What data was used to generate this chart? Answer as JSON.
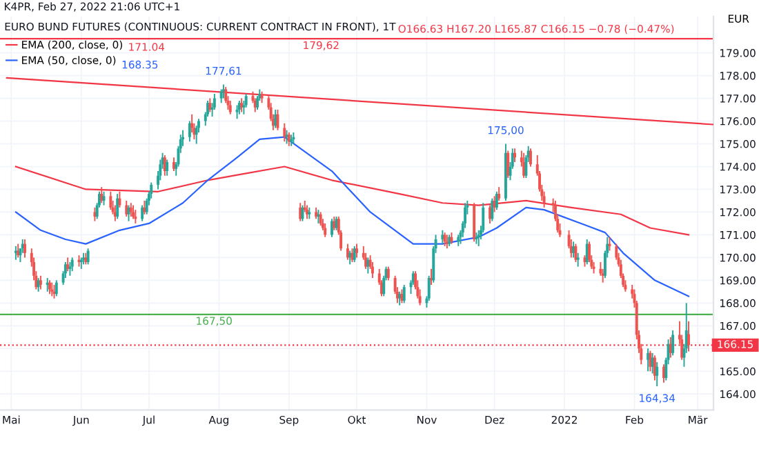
{
  "chart_data": {
    "type": "candlestick",
    "title": "EURO BUND FUTURES (CONTINUOUS: CURRENT CONTRACT IN FRONT), 1T",
    "subtitle": "K4PR, Feb 27, 2022 21:06 UTC+1",
    "ylabel": "EUR",
    "x": [
      "2021-05-03",
      "2021-05-04",
      "2021-05-05",
      "2021-05-06",
      "2021-05-07",
      "2021-05-10",
      "2021-05-11",
      "2021-05-12",
      "2021-05-13",
      "2021-05-14",
      "2021-05-17",
      "2021-05-18",
      "2021-05-19",
      "2021-05-20",
      "2021-05-21",
      "2021-05-24",
      "2021-05-25",
      "2021-05-26",
      "2021-05-27",
      "2021-05-28",
      "2021-05-31",
      "2021-06-01",
      "2021-06-02",
      "2021-06-03",
      "2021-06-04",
      "2021-06-07",
      "2021-06-08",
      "2021-06-09",
      "2021-06-10",
      "2021-06-11",
      "2021-06-14",
      "2021-06-15",
      "2021-06-16",
      "2021-06-17",
      "2021-06-18",
      "2021-06-21",
      "2021-06-22",
      "2021-06-23",
      "2021-06-24",
      "2021-06-25",
      "2021-06-28",
      "2021-06-29",
      "2021-06-30",
      "2021-07-01",
      "2021-07-02",
      "2021-07-05",
      "2021-07-06",
      "2021-07-07",
      "2021-07-08",
      "2021-07-09",
      "2021-07-12",
      "2021-07-13",
      "2021-07-14",
      "2021-07-15",
      "2021-07-16",
      "2021-07-19",
      "2021-07-20",
      "2021-07-21",
      "2021-07-22",
      "2021-07-23",
      "2021-07-26",
      "2021-07-27",
      "2021-07-28",
      "2021-07-29",
      "2021-07-30",
      "2021-08-02",
      "2021-08-03",
      "2021-08-04",
      "2021-08-05",
      "2021-08-06",
      "2021-08-09",
      "2021-08-10",
      "2021-08-11",
      "2021-08-12",
      "2021-08-13",
      "2021-08-16",
      "2021-08-17",
      "2021-08-18",
      "2021-08-19",
      "2021-08-20",
      "2021-08-23",
      "2021-08-24",
      "2021-08-25",
      "2021-08-26",
      "2021-08-27",
      "2021-08-30",
      "2021-08-31",
      "2021-09-01",
      "2021-09-02",
      "2021-09-03",
      "2021-09-06",
      "2021-09-07",
      "2021-09-08",
      "2021-09-09",
      "2021-09-10",
      "2021-09-13",
      "2021-09-14",
      "2021-09-15",
      "2021-09-16",
      "2021-09-17",
      "2021-09-20",
      "2021-09-21",
      "2021-09-22",
      "2021-09-23",
      "2021-09-24",
      "2021-09-27",
      "2021-09-28",
      "2021-09-29",
      "2021-09-30",
      "2021-10-01",
      "2021-10-04",
      "2021-10-05",
      "2021-10-06",
      "2021-10-07",
      "2021-10-08",
      "2021-10-11",
      "2021-10-12",
      "2021-10-13",
      "2021-10-14",
      "2021-10-15",
      "2021-10-18",
      "2021-10-19",
      "2021-10-20",
      "2021-10-21",
      "2021-10-22",
      "2021-10-25",
      "2021-10-26",
      "2021-10-27",
      "2021-10-28",
      "2021-10-29",
      "2021-11-01",
      "2021-11-02",
      "2021-11-03",
      "2021-11-04",
      "2021-11-05",
      "2021-11-08",
      "2021-11-09",
      "2021-11-10",
      "2021-11-11",
      "2021-11-12",
      "2021-11-15",
      "2021-11-16",
      "2021-11-17",
      "2021-11-18",
      "2021-11-19",
      "2021-11-22",
      "2021-11-23",
      "2021-11-24",
      "2021-11-25",
      "2021-11-26",
      "2021-11-29",
      "2021-11-30",
      "2021-12-01",
      "2021-12-02",
      "2021-12-03",
      "2021-12-06",
      "2021-12-07",
      "2021-12-08",
      "2021-12-09",
      "2021-12-10",
      "2021-12-13",
      "2021-12-14",
      "2021-12-15",
      "2021-12-16",
      "2021-12-17",
      "2021-12-20",
      "2021-12-21",
      "2021-12-22",
      "2021-12-23",
      "2021-12-27",
      "2021-12-28",
      "2021-12-29",
      "2021-12-30",
      "2022-01-03",
      "2022-01-04",
      "2022-01-05",
      "2022-01-06",
      "2022-01-07",
      "2022-01-10",
      "2022-01-11",
      "2022-01-12",
      "2022-01-13",
      "2022-01-14",
      "2022-01-17",
      "2022-01-18",
      "2022-01-19",
      "2022-01-20",
      "2022-01-21",
      "2022-01-24",
      "2022-01-25",
      "2022-01-26",
      "2022-01-27",
      "2022-01-28",
      "2022-01-31",
      "2022-02-01",
      "2022-02-02",
      "2022-02-03",
      "2022-02-04",
      "2022-02-07",
      "2022-02-08",
      "2022-02-09",
      "2022-02-10",
      "2022-02-11",
      "2022-02-14",
      "2022-02-15",
      "2022-02-16",
      "2022-02-17",
      "2022-02-18",
      "2022-02-21",
      "2022-02-22",
      "2022-02-23",
      "2022-02-24",
      "2022-02-25"
    ],
    "ohlc": [
      [
        170.2,
        170.5,
        169.9,
        170.3
      ],
      [
        170.3,
        170.6,
        170.0,
        170.1
      ],
      [
        170.1,
        170.4,
        169.8,
        170.4
      ],
      [
        170.4,
        170.8,
        170.2,
        170.6
      ],
      [
        170.6,
        170.8,
        170.0,
        170.2
      ],
      [
        170.2,
        170.4,
        169.6,
        169.8
      ],
      [
        169.8,
        170.0,
        169.0,
        169.2
      ],
      [
        169.2,
        169.4,
        168.6,
        168.7
      ],
      [
        168.7,
        169.1,
        168.5,
        169.0
      ],
      [
        169.0,
        169.2,
        168.6,
        168.8
      ],
      [
        168.8,
        169.1,
        168.5,
        168.9
      ],
      [
        168.9,
        169.0,
        168.4,
        168.6
      ],
      [
        168.6,
        168.9,
        168.3,
        168.5
      ],
      [
        168.5,
        168.8,
        168.2,
        168.4
      ],
      [
        168.4,
        169.0,
        168.3,
        168.9
      ],
      [
        168.9,
        169.4,
        168.8,
        169.3
      ],
      [
        169.3,
        169.8,
        169.1,
        169.7
      ],
      [
        169.7,
        170.0,
        169.4,
        169.5
      ],
      [
        169.5,
        169.8,
        169.2,
        169.6
      ],
      [
        169.6,
        170.0,
        169.4,
        169.9
      ],
      [
        169.9,
        170.1,
        169.6,
        169.8
      ],
      [
        169.8,
        170.0,
        169.5,
        169.9
      ],
      [
        169.9,
        170.2,
        169.7,
        170.0
      ],
      [
        170.0,
        170.2,
        169.7,
        169.8
      ],
      [
        169.8,
        170.4,
        169.7,
        170.3
      ],
      [
        172.0,
        172.2,
        171.6,
        171.8
      ],
      [
        171.8,
        172.4,
        171.7,
        172.3
      ],
      [
        172.3,
        172.9,
        172.2,
        172.8
      ],
      [
        172.8,
        173.1,
        172.4,
        172.5
      ],
      [
        172.5,
        172.9,
        172.3,
        172.7
      ],
      [
        172.7,
        172.9,
        172.1,
        172.2
      ],
      [
        172.2,
        172.5,
        171.9,
        172.0
      ],
      [
        172.0,
        172.3,
        171.6,
        171.8
      ],
      [
        171.8,
        172.8,
        171.7,
        172.6
      ],
      [
        172.6,
        172.9,
        172.2,
        172.3
      ],
      [
        172.3,
        172.5,
        171.8,
        171.9
      ],
      [
        171.9,
        172.3,
        171.6,
        172.2
      ],
      [
        172.2,
        172.4,
        171.8,
        172.0
      ],
      [
        172.0,
        172.3,
        171.7,
        171.8
      ],
      [
        171.8,
        172.1,
        171.5,
        171.7
      ],
      [
        171.7,
        172.3,
        171.6,
        172.2
      ],
      [
        172.2,
        172.5,
        171.9,
        172.0
      ],
      [
        172.0,
        172.6,
        171.9,
        172.5
      ],
      [
        172.5,
        172.9,
        172.3,
        172.8
      ],
      [
        172.8,
        173.3,
        172.6,
        173.2
      ],
      [
        173.2,
        173.8,
        173.0,
        173.6
      ],
      [
        173.6,
        174.3,
        173.4,
        174.1
      ],
      [
        174.1,
        174.6,
        173.9,
        174.4
      ],
      [
        174.4,
        174.5,
        173.6,
        173.8
      ],
      [
        173.8,
        174.3,
        173.6,
        174.2
      ],
      [
        174.2,
        174.4,
        173.8,
        173.9
      ],
      [
        173.9,
        174.2,
        173.6,
        174.1
      ],
      [
        174.1,
        174.9,
        174.0,
        174.8
      ],
      [
        174.8,
        175.4,
        174.6,
        175.2
      ],
      [
        175.2,
        175.6,
        174.9,
        175.3
      ],
      [
        175.3,
        176.0,
        175.1,
        175.9
      ],
      [
        175.9,
        176.3,
        175.5,
        175.7
      ],
      [
        175.7,
        175.9,
        175.2,
        175.4
      ],
      [
        175.4,
        175.8,
        175.0,
        175.7
      ],
      [
        175.7,
        176.1,
        175.5,
        176.0
      ],
      [
        176.0,
        176.4,
        175.8,
        176.3
      ],
      [
        176.3,
        176.9,
        176.2,
        176.8
      ],
      [
        176.8,
        177.0,
        176.4,
        176.5
      ],
      [
        176.5,
        176.8,
        176.2,
        176.6
      ],
      [
        176.6,
        177.2,
        176.5,
        177.0
      ],
      [
        177.0,
        177.4,
        176.8,
        177.3
      ],
      [
        177.3,
        177.61,
        177.0,
        177.4
      ],
      [
        177.4,
        177.5,
        176.8,
        176.9
      ],
      [
        176.9,
        177.1,
        176.5,
        176.7
      ],
      [
        176.7,
        176.9,
        176.3,
        176.4
      ],
      [
        176.4,
        176.7,
        176.1,
        176.5
      ],
      [
        176.5,
        176.9,
        176.3,
        176.8
      ],
      [
        176.8,
        177.0,
        176.4,
        176.6
      ],
      [
        176.6,
        176.9,
        176.3,
        176.7
      ],
      [
        176.7,
        177.2,
        176.6,
        177.1
      ],
      [
        177.1,
        177.3,
        176.8,
        176.9
      ],
      [
        176.9,
        177.0,
        176.4,
        176.6
      ],
      [
        176.6,
        177.1,
        176.5,
        177.0
      ],
      [
        177.0,
        177.4,
        176.9,
        177.2
      ],
      [
        177.2,
        177.3,
        176.8,
        177.0
      ],
      [
        177.0,
        177.1,
        176.5,
        176.6
      ],
      [
        176.6,
        176.8,
        176.0,
        176.1
      ],
      [
        176.1,
        176.3,
        175.6,
        175.8
      ],
      [
        175.8,
        176.5,
        175.7,
        176.3
      ],
      [
        176.3,
        176.5,
        175.6,
        175.7
      ],
      [
        175.7,
        175.9,
        175.1,
        175.3
      ],
      [
        175.3,
        175.6,
        175.0,
        175.4
      ],
      [
        175.4,
        175.5,
        174.9,
        175.1
      ],
      [
        175.1,
        175.4,
        174.9,
        175.2
      ],
      [
        175.2,
        175.5,
        175.0,
        175.3
      ],
      [
        172.2,
        172.4,
        171.6,
        171.7
      ],
      [
        171.7,
        172.3,
        171.6,
        172.2
      ],
      [
        172.2,
        172.5,
        172.0,
        172.1
      ],
      [
        172.1,
        172.3,
        171.7,
        171.9
      ],
      [
        171.9,
        172.2,
        171.7,
        172.0
      ],
      [
        172.0,
        172.2,
        171.7,
        171.8
      ],
      [
        171.8,
        172.1,
        171.5,
        171.9
      ],
      [
        171.9,
        172.0,
        171.4,
        171.5
      ],
      [
        171.5,
        171.7,
        171.2,
        171.3
      ],
      [
        171.3,
        171.5,
        170.9,
        171.0
      ],
      [
        171.0,
        171.7,
        170.9,
        171.6
      ],
      [
        171.6,
        171.8,
        171.2,
        171.3
      ],
      [
        171.3,
        171.8,
        171.2,
        171.7
      ],
      [
        171.7,
        171.8,
        171.0,
        171.1
      ],
      [
        171.1,
        171.2,
        170.3,
        170.4
      ],
      [
        170.4,
        170.6,
        169.9,
        170.0
      ],
      [
        170.0,
        170.3,
        169.7,
        170.2
      ],
      [
        170.2,
        170.4,
        169.8,
        169.9
      ],
      [
        169.9,
        170.5,
        169.8,
        170.4
      ],
      [
        170.4,
        170.6,
        170.0,
        170.2
      ],
      [
        170.2,
        170.5,
        169.9,
        170.0
      ],
      [
        170.0,
        170.2,
        169.5,
        169.6
      ],
      [
        169.6,
        170.0,
        169.3,
        169.9
      ],
      [
        169.9,
        170.1,
        169.5,
        169.6
      ],
      [
        169.6,
        169.8,
        169.1,
        169.3
      ],
      [
        169.3,
        169.5,
        168.8,
        168.9
      ],
      [
        168.9,
        169.0,
        168.3,
        168.4
      ],
      [
        168.4,
        169.2,
        168.3,
        169.1
      ],
      [
        169.1,
        169.6,
        169.0,
        169.5
      ],
      [
        169.5,
        169.6,
        169.0,
        169.1
      ],
      [
        169.1,
        169.2,
        168.4,
        168.5
      ],
      [
        168.5,
        168.7,
        168.0,
        168.2
      ],
      [
        168.2,
        168.5,
        167.9,
        168.4
      ],
      [
        168.4,
        168.6,
        168.0,
        168.1
      ],
      [
        168.1,
        168.8,
        168.0,
        168.7
      ],
      [
        168.7,
        169.0,
        168.4,
        168.9
      ],
      [
        168.9,
        169.4,
        168.8,
        169.3
      ],
      [
        169.3,
        169.4,
        168.6,
        168.7
      ],
      [
        168.7,
        169.0,
        168.2,
        168.3
      ],
      [
        168.3,
        168.6,
        167.9,
        168.0
      ],
      [
        168.0,
        168.3,
        167.8,
        168.2
      ],
      [
        168.2,
        169.2,
        168.1,
        169.1
      ],
      [
        169.1,
        169.5,
        168.8,
        169.0
      ],
      [
        169.0,
        170.5,
        168.9,
        170.4
      ],
      [
        170.4,
        171.0,
        170.2,
        170.8
      ],
      [
        170.8,
        171.2,
        170.6,
        171.0
      ],
      [
        171.0,
        171.1,
        170.5,
        170.7
      ],
      [
        170.7,
        171.0,
        170.4,
        170.6
      ],
      [
        170.6,
        171.0,
        170.5,
        170.9
      ],
      [
        170.9,
        171.1,
        170.6,
        170.7
      ],
      [
        170.7,
        171.0,
        170.5,
        170.9
      ],
      [
        170.9,
        171.2,
        170.6,
        171.1
      ],
      [
        171.1,
        171.6,
        170.9,
        171.5
      ],
      [
        171.5,
        172.4,
        171.3,
        172.2
      ],
      [
        172.2,
        172.5,
        171.9,
        172.3
      ],
      [
        172.3,
        172.4,
        170.7,
        170.8
      ],
      [
        170.8,
        171.1,
        170.6,
        170.9
      ],
      [
        170.9,
        171.2,
        170.5,
        171.0
      ],
      [
        171.0,
        171.4,
        170.8,
        171.2
      ],
      [
        171.2,
        172.4,
        171.1,
        172.2
      ],
      [
        172.2,
        172.3,
        171.5,
        171.7
      ],
      [
        171.7,
        172.6,
        171.6,
        172.5
      ],
      [
        172.5,
        172.7,
        172.0,
        172.2
      ],
      [
        172.2,
        172.9,
        172.1,
        172.8
      ],
      [
        172.8,
        173.1,
        172.5,
        172.6
      ],
      [
        172.6,
        175.0,
        172.5,
        174.6
      ],
      [
        174.6,
        174.7,
        173.5,
        173.6
      ],
      [
        173.6,
        174.2,
        173.4,
        174.0
      ],
      [
        174.0,
        174.8,
        173.9,
        174.6
      ],
      [
        174.6,
        174.8,
        174.2,
        174.4
      ],
      [
        174.4,
        174.7,
        174.0,
        174.2
      ],
      [
        174.2,
        174.6,
        173.5,
        173.6
      ],
      [
        173.6,
        174.5,
        173.5,
        174.4
      ],
      [
        174.4,
        174.9,
        174.2,
        174.7
      ],
      [
        174.7,
        174.8,
        174.0,
        174.1
      ],
      [
        174.1,
        174.5,
        173.6,
        173.7
      ],
      [
        173.7,
        173.8,
        172.9,
        173.0
      ],
      [
        173.0,
        173.2,
        172.5,
        172.7
      ],
      [
        172.7,
        172.9,
        172.2,
        172.4
      ],
      [
        172.4,
        172.6,
        172.0,
        172.3
      ],
      [
        172.3,
        172.5,
        171.6,
        171.7
      ],
      [
        171.7,
        171.9,
        171.1,
        171.2
      ],
      [
        171.2,
        171.5,
        170.9,
        171.0
      ],
      [
        171.0,
        171.2,
        170.4,
        170.5
      ],
      [
        170.5,
        170.8,
        170.0,
        170.2
      ],
      [
        170.2,
        170.7,
        170.0,
        170.5
      ],
      [
        170.5,
        170.6,
        169.8,
        169.9
      ],
      [
        169.9,
        170.2,
        169.6,
        170.0
      ],
      [
        170.0,
        170.1,
        169.6,
        169.8
      ],
      [
        169.8,
        170.8,
        169.7,
        170.6
      ],
      [
        170.6,
        170.7,
        169.8,
        169.9
      ],
      [
        169.9,
        170.1,
        169.5,
        169.6
      ],
      [
        169.6,
        169.8,
        169.3,
        169.5
      ],
      [
        169.5,
        169.8,
        169.2,
        169.3
      ],
      [
        169.3,
        169.5,
        168.9,
        169.2
      ],
      [
        169.2,
        170.3,
        169.1,
        170.2
      ],
      [
        170.2,
        170.9,
        170.0,
        170.6
      ],
      [
        170.6,
        170.9,
        170.3,
        170.5
      ],
      [
        170.5,
        170.6,
        169.9,
        170.0
      ],
      [
        170.0,
        170.2,
        169.6,
        169.7
      ],
      [
        169.7,
        169.9,
        169.1,
        169.2
      ],
      [
        169.2,
        169.3,
        168.7,
        168.8
      ],
      [
        168.8,
        169.0,
        168.5,
        168.6
      ],
      [
        168.6,
        168.8,
        168.2,
        168.4
      ],
      [
        168.4,
        168.6,
        167.8,
        168.0
      ],
      [
        168.0,
        168.1,
        166.4,
        166.6
      ],
      [
        166.6,
        166.8,
        165.8,
        166.0
      ],
      [
        166.0,
        166.2,
        165.3,
        165.5
      ],
      [
        165.5,
        166.0,
        165.0,
        165.8
      ],
      [
        165.8,
        165.9,
        165.0,
        165.2
      ],
      [
        165.2,
        165.8,
        164.9,
        165.6
      ],
      [
        165.6,
        165.7,
        164.6,
        164.8
      ],
      [
        164.8,
        165.4,
        164.34,
        165.2
      ],
      [
        165.2,
        165.3,
        164.5,
        164.7
      ],
      [
        164.7,
        165.6,
        164.6,
        165.5
      ],
      [
        165.5,
        166.4,
        165.3,
        166.2
      ],
      [
        166.2,
        166.5,
        165.6,
        165.8
      ],
      [
        165.8,
        166.8,
        165.7,
        166.6
      ],
      [
        166.6,
        167.2,
        166.2,
        166.4
      ],
      [
        166.4,
        166.6,
        165.5,
        165.6
      ],
      [
        165.6,
        166.2,
        165.2,
        166.0
      ],
      [
        166.0,
        168.0,
        165.8,
        166.8
      ],
      [
        166.63,
        167.2,
        165.87,
        166.15
      ]
    ],
    "series": [
      {
        "type": "line",
        "name": "EMA (200, close, 0)",
        "color": "#f23645",
        "x": [
          "2021-05-03",
          "2021-06-03",
          "2021-07-05",
          "2021-07-27",
          "2021-08-13",
          "2021-08-30",
          "2021-09-20",
          "2021-10-20",
          "2021-11-08",
          "2021-11-24",
          "2021-12-15",
          "2022-01-04",
          "2022-01-26",
          "2022-02-08",
          "2022-02-25"
        ],
        "values": [
          174.0,
          173.0,
          172.9,
          173.4,
          173.7,
          174.0,
          173.4,
          172.8,
          172.4,
          172.3,
          172.5,
          172.2,
          171.9,
          171.3,
          171.0
        ]
      },
      {
        "type": "line",
        "name": "EMA (50, close, 0)",
        "color": "#2962ff",
        "x": [
          "2021-05-03",
          "2021-05-14",
          "2021-05-25",
          "2021-06-03",
          "2021-06-18",
          "2021-07-01",
          "2021-07-16",
          "2021-07-27",
          "2021-08-09",
          "2021-08-19",
          "2021-08-30",
          "2021-09-20",
          "2021-10-07",
          "2021-10-26",
          "2021-11-08",
          "2021-11-24",
          "2021-12-02",
          "2021-12-15",
          "2021-12-23",
          "2022-01-11",
          "2022-01-19",
          "2022-01-27",
          "2022-02-10",
          "2022-02-25"
        ],
        "values": [
          172.0,
          171.2,
          170.8,
          170.6,
          171.2,
          171.5,
          172.4,
          173.4,
          174.4,
          175.2,
          175.3,
          173.8,
          172.0,
          170.6,
          170.6,
          170.9,
          171.3,
          172.2,
          172.1,
          171.4,
          171.1,
          170.2,
          169.0,
          168.3
        ]
      },
      {
        "type": "line",
        "color": "#f23645",
        "x": [
          "2021-04-29",
          "2022-03-08"
        ],
        "values": [
          177.9,
          175.85
        ]
      }
    ],
    "ref_lines": [
      {
        "axis": "y",
        "value": 179.62,
        "label": "179,62",
        "color": "#f23645",
        "line_style": "solid"
      },
      {
        "axis": "y",
        "value": 167.5,
        "label": "167,50",
        "color": "#4caf50",
        "line_style": "solid"
      },
      {
        "axis": "y",
        "value": 166.15,
        "label": "166.15",
        "color": "#f23645",
        "line_style": "dotted"
      }
    ],
    "annotations": [
      "O166.63 H167.20 L165.87 C166.15 −0.78 (−0.47%)",
      "171.04",
      "168.35",
      {
        "text": "177,61",
        "x": "2021-08-03",
        "y": 177.61
      },
      {
        "text": "175,00",
        "x": "2021-12-06",
        "y": 175.0
      },
      {
        "text": "164,34",
        "x": "2022-02-11",
        "y": 164.34
      }
    ],
    "xlim": [
      "2021-04-26",
      "2022-03-08"
    ],
    "xticks": [
      {
        "value": "2021-05-01",
        "label": "Mai"
      },
      {
        "value": "2021-06-01",
        "label": "Jun"
      },
      {
        "value": "2021-07-01",
        "label": "Jul"
      },
      {
        "value": "2021-08-01",
        "label": "Aug"
      },
      {
        "value": "2021-09-01",
        "label": "Sep"
      },
      {
        "value": "2021-10-01",
        "label": "Okt"
      },
      {
        "value": "2021-11-01",
        "label": "Nov"
      },
      {
        "value": "2021-12-01",
        "label": "Dez"
      },
      {
        "value": "2022-01-01",
        "label": "2022"
      },
      {
        "value": "2022-02-01",
        "label": "Feb"
      },
      {
        "value": "2022-03-01",
        "label": "Mär"
      }
    ],
    "ylim": [
      163.3,
      180.6
    ],
    "yticks": [
      {
        "value": 164,
        "label": "164.00"
      },
      {
        "value": 165,
        "label": "165.00"
      },
      {
        "value": 166,
        "label": null
      },
      {
        "value": 167,
        "label": "167.00"
      },
      {
        "value": 168,
        "label": "168.00"
      },
      {
        "value": 169,
        "label": "169.00"
      },
      {
        "value": 170,
        "label": "170.00"
      },
      {
        "value": 171,
        "label": "171.00"
      },
      {
        "value": 172,
        "label": "172.00"
      },
      {
        "value": 173,
        "label": "173.00"
      },
      {
        "value": 174,
        "label": "174.00"
      },
      {
        "value": 175,
        "label": "175.00"
      },
      {
        "value": 176,
        "label": "176.00"
      },
      {
        "value": 177,
        "label": "177.00"
      },
      {
        "value": 178,
        "label": "178.00"
      },
      {
        "value": 179,
        "label": "179.00"
      }
    ],
    "grid": true,
    "legend": "top left"
  }
}
